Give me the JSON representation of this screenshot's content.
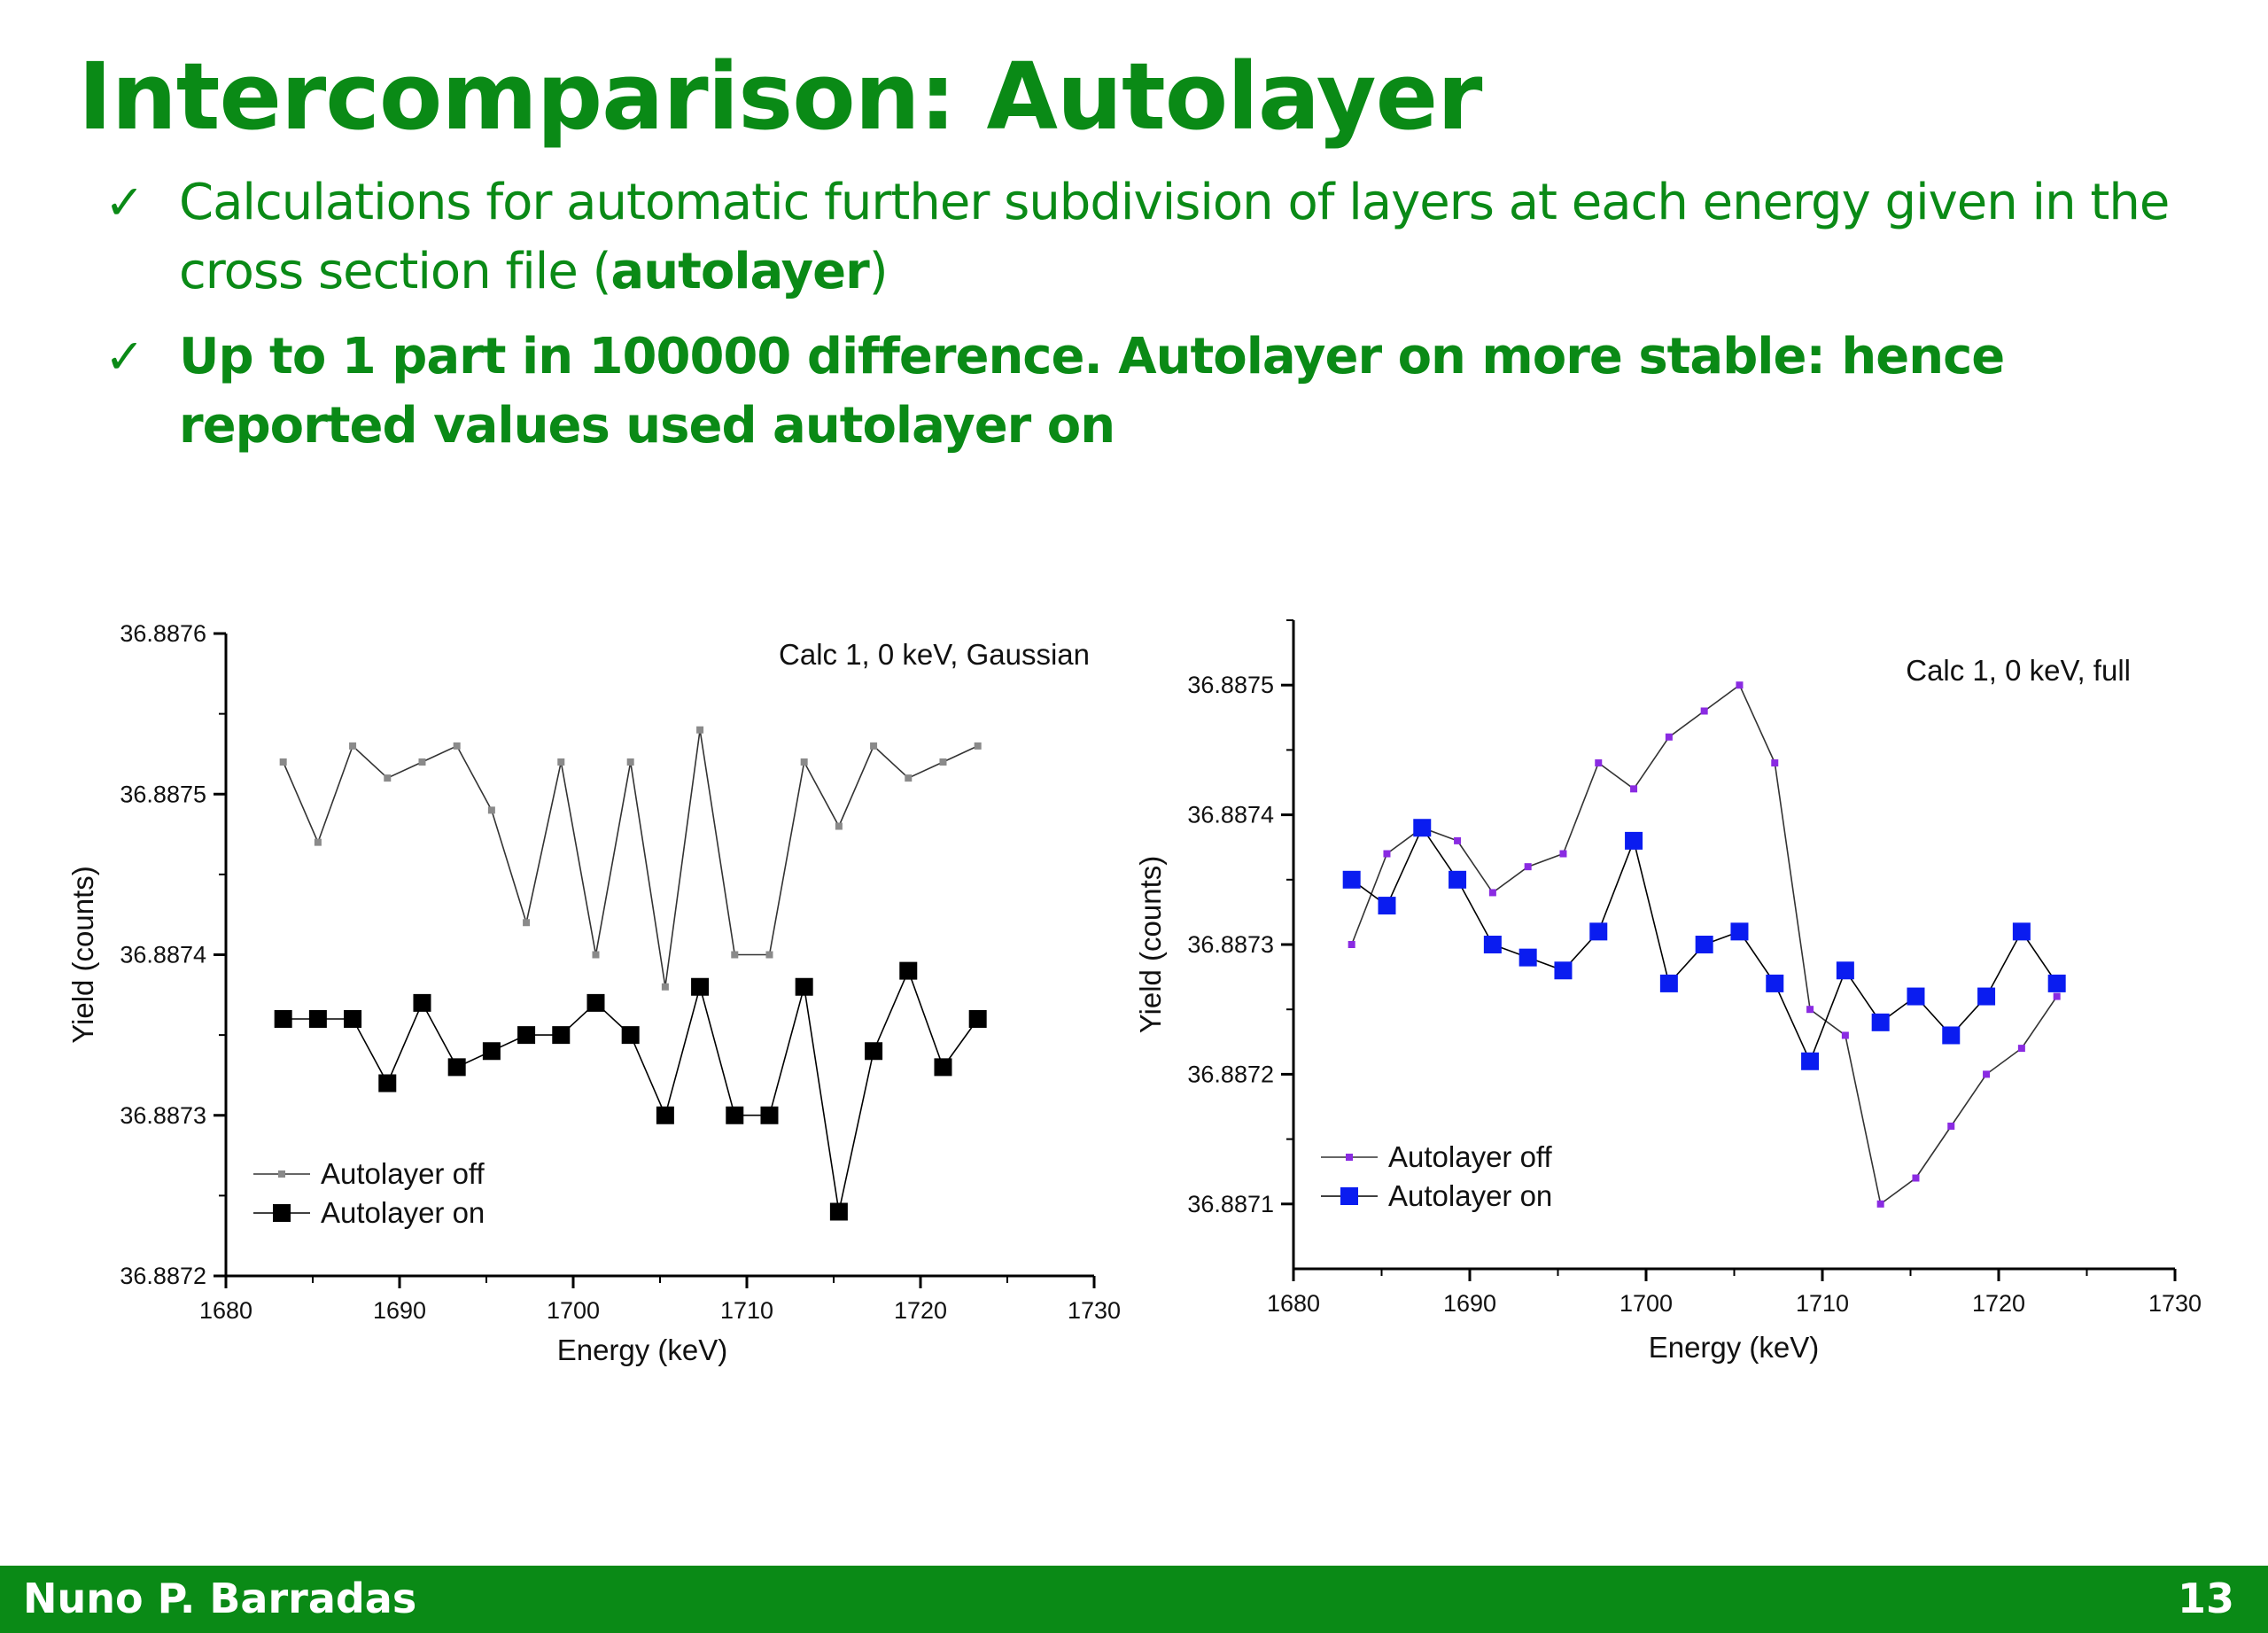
{
  "slide": {
    "title": "Intercomparison: Autolayer",
    "bullets": [
      {
        "text": "Calculations for automatic further subdivision of layers at each energy given in the cross section file (",
        "bold_text": "autolayer",
        "after": ")"
      },
      {
        "text": "Up to 1 part in 100000 difference. Autolayer on more stable: hence reported values used autolayer on"
      }
    ],
    "check_glyph": "✓"
  },
  "footer": {
    "author": "Nuno P. Barradas",
    "page": "13",
    "color": "#0a8a16"
  },
  "chart_data": [
    {
      "type": "line",
      "title": "Calc 1, 0 keV, Gaussian",
      "xlabel": "Energy (keV)",
      "ylabel": "Yield (counts)",
      "xlim": [
        1680,
        1730
      ],
      "ylim": [
        36.8872,
        36.8876
      ],
      "xticks": [
        "1680",
        "1690",
        "1700",
        "1710",
        "1720",
        "1730"
      ],
      "yticks": [
        "36.8872",
        "36.8873",
        "36.8874",
        "36.8875",
        "36.8876"
      ],
      "legend_position": "bottom-left",
      "x": [
        1683.3,
        1685.3,
        1687.3,
        1689.3,
        1691.3,
        1693.3,
        1695.3,
        1697.3,
        1699.3,
        1701.3,
        1703.3,
        1705.3,
        1707.3,
        1709.3,
        1711.3,
        1713.3,
        1715.3,
        1717.3,
        1719.3,
        1721.3,
        1723.3
      ],
      "series": [
        {
          "name": "Autolayer off",
          "color": "#8a8a8a",
          "marker": "small-square",
          "values": [
            36.88752,
            36.88747,
            36.88753,
            36.88751,
            36.88752,
            36.88753,
            36.88749,
            36.88742,
            36.88752,
            36.8874,
            36.88752,
            36.88738,
            36.88754,
            36.8874,
            36.8874,
            36.88752,
            36.88748,
            36.88753,
            36.88751,
            36.88752,
            36.88753
          ]
        },
        {
          "name": "Autolayer on",
          "color": "#000000",
          "marker": "large-square",
          "values": [
            36.88736,
            36.88736,
            36.88736,
            36.88732,
            36.88737,
            36.88733,
            36.88734,
            36.88735,
            36.88735,
            36.88737,
            36.88735,
            36.8873,
            36.88738,
            36.8873,
            36.8873,
            36.88738,
            36.88724,
            36.88734,
            36.88739,
            36.88733,
            36.88736
          ]
        }
      ]
    },
    {
      "type": "line",
      "title": "Calc 1, 0 keV, full",
      "xlabel": "Energy (keV)",
      "ylabel": "Yield (counts)",
      "xlim": [
        1680,
        1730
      ],
      "ylim": [
        36.88705,
        36.88755
      ],
      "xticks": [
        "1680",
        "1690",
        "1700",
        "1710",
        "1720",
        "1730"
      ],
      "yticks": [
        "36.8871",
        "36.8872",
        "36.8873",
        "36.8874",
        "36.8875"
      ],
      "legend_position": "bottom-left",
      "x": [
        1683.3,
        1685.3,
        1687.3,
        1689.3,
        1691.3,
        1693.3,
        1695.3,
        1697.3,
        1699.3,
        1701.3,
        1703.3,
        1705.3,
        1707.3,
        1709.3,
        1711.3,
        1713.3,
        1715.3,
        1717.3,
        1719.3,
        1721.3,
        1723.3
      ],
      "series": [
        {
          "name": "Autolayer off",
          "color": "#8a2be2",
          "marker": "small-square",
          "values": [
            36.8873,
            36.88737,
            36.88739,
            36.88738,
            36.88734,
            36.88736,
            36.88737,
            36.88744,
            36.88742,
            36.88746,
            36.88748,
            36.8875,
            36.88744,
            36.88725,
            36.88723,
            36.8871,
            36.88712,
            36.88716,
            36.8872,
            36.88722,
            36.88726
          ]
        },
        {
          "name": "Autolayer on",
          "color": "#0a1cf0",
          "marker": "large-square",
          "values": [
            36.88735,
            36.88733,
            36.88739,
            36.88735,
            36.8873,
            36.88729,
            36.88728,
            36.88731,
            36.88738,
            36.88727,
            36.8873,
            36.88731,
            36.88727,
            36.88721,
            36.88728,
            36.88724,
            36.88726,
            36.88723,
            36.88726,
            36.88731,
            36.88727
          ]
        }
      ]
    }
  ]
}
